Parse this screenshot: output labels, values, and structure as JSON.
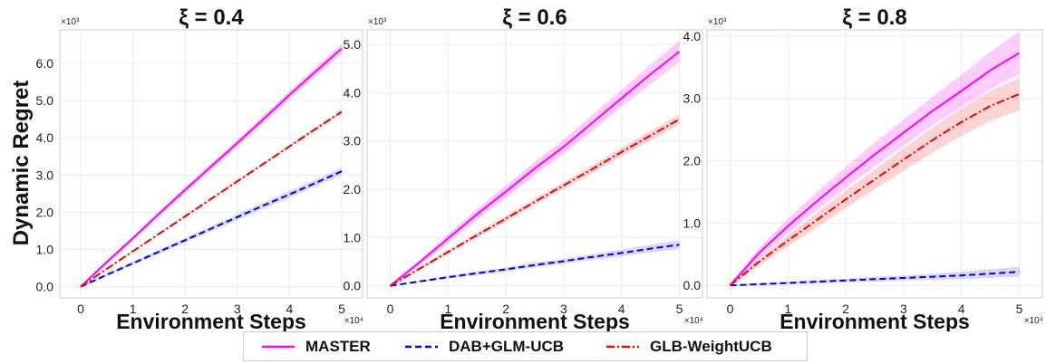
{
  "figure": {
    "ylabel": "Dynamic Regret",
    "xlabel": "Environment Steps",
    "x_multiplier": "×10⁴",
    "y_multiplier": "×10³"
  },
  "legend": [
    {
      "name": "MASTER",
      "color": "#ff00ff",
      "style": "solid"
    },
    {
      "name": "DAB+GLM-UCB",
      "color": "#0000dd",
      "style": "dashed"
    },
    {
      "name": "GLB-WeightUCB",
      "color": "#ee0000",
      "style": "dashdot"
    }
  ],
  "chart_data": [
    {
      "type": "line",
      "title": "ξ = 0.4",
      "xlabel": "Environment Steps",
      "ylabel": "Dynamic Regret",
      "x_scale": "×10⁴",
      "y_scale": "×10³",
      "xlim": [
        -0.4,
        5.4
      ],
      "ylim": [
        -0.3,
        6.9
      ],
      "xticks": [
        0,
        1,
        2,
        3,
        4,
        5
      ],
      "yticks": [
        0,
        1,
        2,
        3,
        4,
        5,
        6
      ],
      "ytick_labels": [
        "0.0",
        "1.0",
        "2.0",
        "3.0",
        "4.0",
        "5.0",
        "6.0"
      ],
      "grid": true,
      "x": [
        0,
        0.5,
        1,
        1.5,
        2,
        2.5,
        3,
        3.5,
        4,
        4.5,
        5
      ],
      "series": [
        {
          "name": "MASTER",
          "values": [
            0,
            0.66,
            1.3,
            1.96,
            2.6,
            3.23,
            3.86,
            4.5,
            5.15,
            5.78,
            6.4
          ],
          "band": [
            0.03,
            0.05,
            0.06,
            0.07,
            0.08,
            0.09,
            0.09,
            0.1,
            0.1,
            0.12,
            0.13
          ]
        },
        {
          "name": "DAB+GLM-UCB",
          "values": [
            0,
            0.32,
            0.63,
            0.94,
            1.25,
            1.56,
            1.87,
            2.18,
            2.48,
            2.79,
            3.1
          ],
          "band": [
            0.02,
            0.04,
            0.05,
            0.06,
            0.06,
            0.07,
            0.08,
            0.08,
            0.09,
            0.09,
            0.1
          ]
        },
        {
          "name": "GLB-WeightUCB",
          "values": [
            0,
            0.48,
            0.95,
            1.42,
            1.89,
            2.36,
            2.83,
            3.3,
            3.77,
            4.24,
            4.7
          ],
          "band": [
            0.01,
            0.02,
            0.02,
            0.03,
            0.03,
            0.03,
            0.04,
            0.04,
            0.04,
            0.05,
            0.05
          ]
        }
      ]
    },
    {
      "type": "line",
      "title": "ξ = 0.6",
      "xlabel": "Environment Steps",
      "ylabel": "",
      "x_scale": "×10⁴",
      "y_scale": "×10³",
      "xlim": [
        -0.4,
        5.4
      ],
      "ylim": [
        -0.25,
        5.3
      ],
      "xticks": [
        0,
        1,
        2,
        3,
        4,
        5
      ],
      "yticks": [
        0,
        1,
        2,
        3,
        4,
        5
      ],
      "ytick_labels": [
        "0.0",
        "1.0",
        "2.0",
        "3.0",
        "4.0",
        "5.0"
      ],
      "grid": true,
      "x": [
        0,
        0.5,
        1,
        1.5,
        2,
        2.5,
        3,
        3.5,
        4,
        4.5,
        5
      ],
      "series": [
        {
          "name": "MASTER",
          "values": [
            0,
            0.48,
            0.98,
            1.48,
            1.95,
            2.43,
            2.88,
            3.38,
            3.88,
            4.38,
            4.85
          ],
          "band": [
            0.03,
            0.06,
            0.09,
            0.11,
            0.13,
            0.14,
            0.15,
            0.17,
            0.18,
            0.2,
            0.22
          ]
        },
        {
          "name": "DAB+GLM-UCB",
          "values": [
            0,
            0.09,
            0.18,
            0.26,
            0.34,
            0.43,
            0.51,
            0.6,
            0.68,
            0.77,
            0.85
          ],
          "band": [
            0.01,
            0.02,
            0.03,
            0.04,
            0.04,
            0.05,
            0.05,
            0.06,
            0.07,
            0.08,
            0.09
          ]
        },
        {
          "name": "GLB-WeightUCB",
          "values": [
            0,
            0.35,
            0.7,
            1.05,
            1.39,
            1.74,
            2.08,
            2.42,
            2.77,
            3.11,
            3.45
          ],
          "band": [
            0.02,
            0.03,
            0.04,
            0.05,
            0.06,
            0.06,
            0.07,
            0.08,
            0.09,
            0.1,
            0.1
          ]
        }
      ]
    },
    {
      "type": "line",
      "title": "ξ = 0.8",
      "xlabel": "Environment Steps",
      "ylabel": "",
      "x_scale": "×10⁴",
      "y_scale": "×10³",
      "xlim": [
        -0.4,
        5.4
      ],
      "ylim": [
        -0.2,
        4.1
      ],
      "xticks": [
        0,
        1,
        2,
        3,
        4,
        5
      ],
      "yticks": [
        0,
        1,
        2,
        3,
        4
      ],
      "ytick_labels": [
        "0.0",
        "1.0",
        "2.0",
        "3.0",
        "4.0"
      ],
      "grid": true,
      "x": [
        0,
        0.5,
        1,
        1.5,
        2,
        2.5,
        3,
        3.5,
        4,
        4.5,
        5
      ],
      "series": [
        {
          "name": "MASTER",
          "values": [
            0,
            0.52,
            0.95,
            1.35,
            1.73,
            2.1,
            2.45,
            2.8,
            3.12,
            3.45,
            3.73
          ],
          "band": [
            0.03,
            0.08,
            0.12,
            0.15,
            0.17,
            0.19,
            0.21,
            0.23,
            0.26,
            0.3,
            0.34
          ]
        },
        {
          "name": "DAB+GLM-UCB",
          "values": [
            0,
            0.02,
            0.04,
            0.06,
            0.08,
            0.1,
            0.12,
            0.14,
            0.16,
            0.19,
            0.22
          ],
          "band": [
            0.01,
            0.02,
            0.02,
            0.03,
            0.03,
            0.04,
            0.04,
            0.05,
            0.06,
            0.07,
            0.08
          ]
        },
        {
          "name": "GLB-WeightUCB",
          "values": [
            0,
            0.38,
            0.72,
            1.05,
            1.38,
            1.7,
            2.02,
            2.33,
            2.62,
            2.88,
            3.07
          ],
          "band": [
            0.02,
            0.06,
            0.09,
            0.12,
            0.14,
            0.16,
            0.18,
            0.2,
            0.22,
            0.24,
            0.26
          ]
        }
      ]
    }
  ]
}
